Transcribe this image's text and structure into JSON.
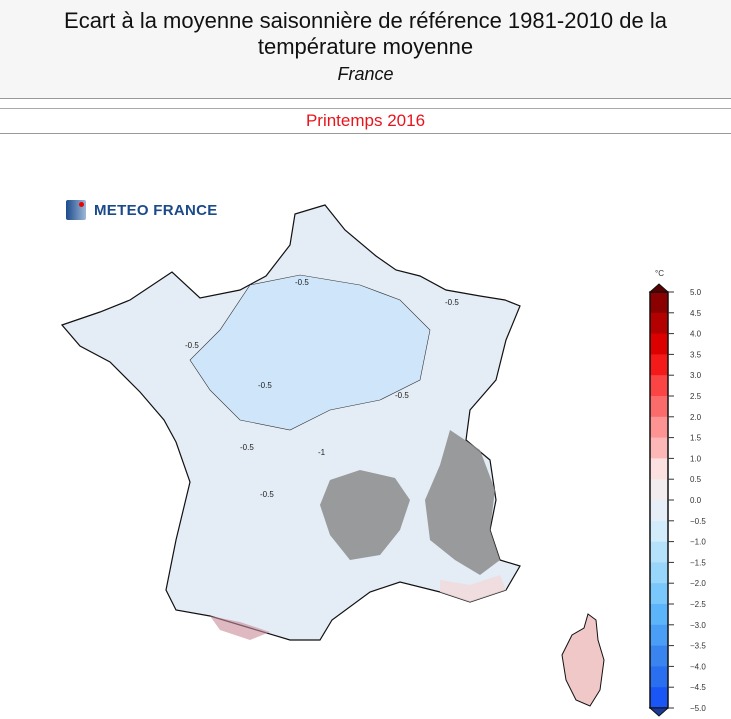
{
  "header": {
    "title": "Ecart à la moyenne saisonnière de référence 1981-2010 de la température moyenne",
    "region": "France"
  },
  "season": "Printemps 2016",
  "logo": {
    "text": "METEO FRANCE"
  },
  "map": {
    "contour_labels": [
      "-0.5",
      "-0.5",
      "-0.5",
      "-0.5",
      "-0.5",
      "-0.5",
      "-1",
      "-0.5"
    ],
    "colors": {
      "land": "#e4ecf5",
      "cold": "#cfe6fa",
      "relief": "#8c8c8c",
      "warm": "#f3dada"
    }
  },
  "colorbar": {
    "unit": "°C",
    "ticks": [
      "5.0",
      "4.5",
      "4.0",
      "3.5",
      "3.0",
      "2.5",
      "2.0",
      "1.5",
      "1.0",
      "0.5",
      "0.0",
      "−0.5",
      "−1.0",
      "−1.5",
      "−2.0",
      "−2.5",
      "−3.0",
      "−3.5",
      "−4.0",
      "−4.5",
      "−5.0"
    ],
    "colors": [
      "#8b0000",
      "#b30000",
      "#dc0000",
      "#f41a1a",
      "#fb4444",
      "#fc6b6b",
      "#fd9393",
      "#feb7b7",
      "#fde0e0",
      "#f2ecee",
      "#e6eef7",
      "#d3ecfb",
      "#b6e1fb",
      "#99d6fc",
      "#7ac7fb",
      "#5cb4fb",
      "#4a9ef5",
      "#3a84f0",
      "#2a6ff0",
      "#1a55f5"
    ],
    "over_color": "#5a0000",
    "under_color": "#1a3a9a"
  }
}
